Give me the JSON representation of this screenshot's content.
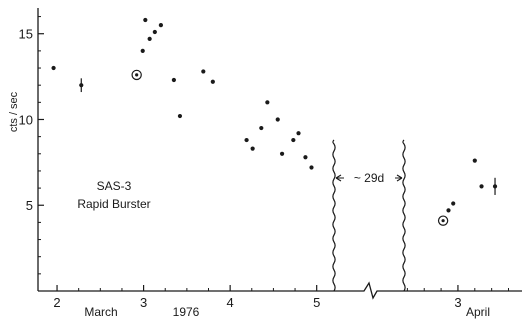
{
  "chart_data": {
    "type": "scatter",
    "title": "",
    "xlabel": "",
    "ylabel": "cts / sec",
    "ylim": [
      0,
      16.5
    ],
    "yticks": [
      5,
      10,
      15
    ],
    "grid": false,
    "x_segments": [
      {
        "name": "March 1976",
        "xlim": [
          1.78,
          5.2
        ],
        "ticks": [
          2,
          3,
          4,
          5
        ]
      },
      {
        "name": "April",
        "xlim": [
          2.2,
          3.95
        ],
        "ticks": [
          3
        ]
      }
    ],
    "x_tick_labels": [
      "2",
      "3",
      "4",
      "5",
      "3"
    ],
    "month_labels": [
      "March",
      "1976",
      "April"
    ],
    "annotations": {
      "source_line1": "SAS-3",
      "source_line2": "Rapid Burster",
      "gap": "~ 29d"
    },
    "series": [
      {
        "segment": "March 1976",
        "points": [
          {
            "x": 1.96,
            "y": 13.0
          },
          {
            "x": 2.28,
            "y": 12.0,
            "err": 0.4
          },
          {
            "x": 2.92,
            "y": 12.6,
            "circled": true
          },
          {
            "x": 2.99,
            "y": 14.0
          },
          {
            "x": 3.02,
            "y": 15.8
          },
          {
            "x": 3.07,
            "y": 14.7
          },
          {
            "x": 3.13,
            "y": 15.1
          },
          {
            "x": 3.2,
            "y": 15.5
          },
          {
            "x": 3.35,
            "y": 12.3
          },
          {
            "x": 3.42,
            "y": 10.2
          },
          {
            "x": 3.69,
            "y": 12.8
          },
          {
            "x": 3.8,
            "y": 12.2
          },
          {
            "x": 4.19,
            "y": 8.8
          },
          {
            "x": 4.26,
            "y": 8.3
          },
          {
            "x": 4.36,
            "y": 9.5
          },
          {
            "x": 4.43,
            "y": 11.0
          },
          {
            "x": 4.55,
            "y": 10.0
          },
          {
            "x": 4.6,
            "y": 8.0
          },
          {
            "x": 4.73,
            "y": 8.8
          },
          {
            "x": 4.79,
            "y": 9.2
          },
          {
            "x": 4.87,
            "y": 7.8
          },
          {
            "x": 4.94,
            "y": 7.2
          }
        ]
      },
      {
        "segment": "April",
        "points": [
          {
            "x": 2.78,
            "y": 4.1,
            "circled": true
          },
          {
            "x": 2.86,
            "y": 4.7
          },
          {
            "x": 2.93,
            "y": 5.1
          },
          {
            "x": 3.25,
            "y": 7.6
          },
          {
            "x": 3.35,
            "y": 6.1
          },
          {
            "x": 3.55,
            "y": 6.1,
            "err": 0.5
          }
        ]
      }
    ]
  }
}
